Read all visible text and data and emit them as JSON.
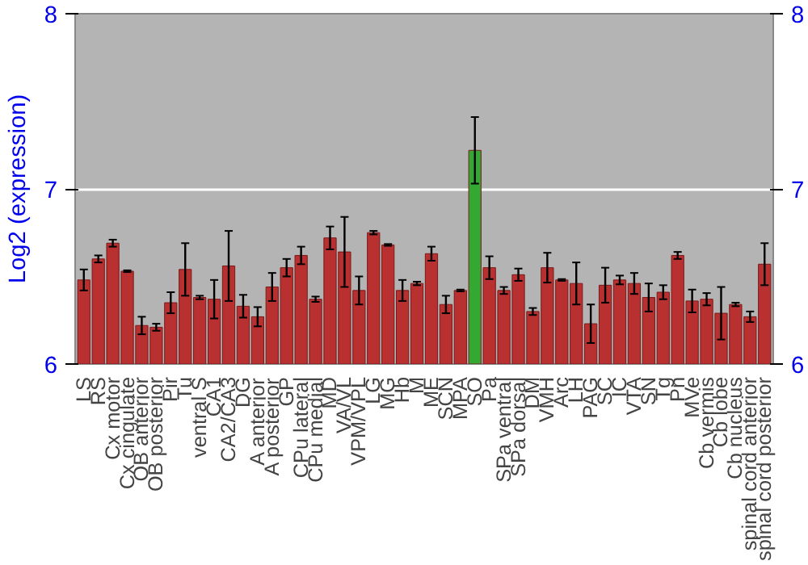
{
  "chart_data": {
    "type": "bar",
    "ylabel": "Log2 (expression)",
    "categories": [
      "LS",
      "RS",
      "Cx motor",
      "Cx cingulate",
      "OB anterior",
      "OB posterior",
      "Pir",
      "Tu",
      "ventral S",
      "CA1",
      "CA2/CA3",
      "DG",
      "A anterior",
      "A posterior",
      "GP",
      "CPu lateral",
      "CPu medial",
      "MD",
      "VA/VL",
      "VPM/VPL",
      "LG",
      "MG",
      "Hb",
      "M",
      "ME",
      "SCN",
      "MPA",
      "SO",
      "Pa",
      "SPa ventral",
      "SPa dorsal",
      "DM",
      "VMH",
      "Arc",
      "LH",
      "PAG",
      "SC",
      "IC",
      "VTA",
      "SN",
      "Tg",
      "Pn",
      "MVe",
      "Cb vermis",
      "Cb lobe",
      "Cb nucleus",
      "spinal cord anterior",
      "spinal cord posterior"
    ],
    "values": [
      6.48,
      6.6,
      6.69,
      6.53,
      6.22,
      6.21,
      6.35,
      6.54,
      6.38,
      6.37,
      6.56,
      6.33,
      6.27,
      6.44,
      6.55,
      6.62,
      6.37,
      6.72,
      6.64,
      6.42,
      6.75,
      6.68,
      6.42,
      6.46,
      6.63,
      6.34,
      6.42,
      7.22,
      6.55,
      6.42,
      6.51,
      6.3,
      6.55,
      6.48,
      6.46,
      6.23,
      6.45,
      6.48,
      6.46,
      6.38,
      6.41,
      6.62,
      6.36,
      6.37,
      6.29,
      6.34,
      6.27,
      6.57
    ],
    "errors": [
      0.06,
      0.02,
      0.02,
      0.005,
      0.05,
      0.02,
      0.06,
      0.15,
      0.01,
      0.11,
      0.2,
      0.065,
      0.055,
      0.08,
      0.05,
      0.05,
      0.015,
      0.065,
      0.2,
      0.08,
      0.01,
      0.005,
      0.06,
      0.01,
      0.04,
      0.05,
      0.005,
      0.19,
      0.065,
      0.02,
      0.035,
      0.02,
      0.085,
      0.005,
      0.12,
      0.11,
      0.1,
      0.025,
      0.06,
      0.08,
      0.04,
      0.02,
      0.065,
      0.035,
      0.15,
      0.01,
      0.03,
      0.12
    ],
    "colors": [
      "#b83030",
      "#b83030",
      "#b83030",
      "#b83030",
      "#b83030",
      "#b83030",
      "#b83030",
      "#b83030",
      "#b83030",
      "#b83030",
      "#b83030",
      "#b83030",
      "#b83030",
      "#b83030",
      "#b83030",
      "#b83030",
      "#b83030",
      "#b83030",
      "#b83030",
      "#b83030",
      "#b83030",
      "#b83030",
      "#b83030",
      "#b83030",
      "#b83030",
      "#b83030",
      "#b83030",
      "#33a833",
      "#b83030",
      "#b83030",
      "#b83030",
      "#b83030",
      "#b83030",
      "#b83030",
      "#b83030",
      "#b83030",
      "#b83030",
      "#b83030",
      "#b83030",
      "#b83030",
      "#b83030",
      "#b83030",
      "#b83030",
      "#b83030",
      "#b83030",
      "#b83030",
      "#b83030",
      "#b83030"
    ],
    "ylim": [
      6,
      8
    ],
    "yticks": [
      6,
      7,
      8
    ],
    "y2lim": [
      6,
      8
    ],
    "y2ticks": [
      6,
      7,
      8
    ],
    "grid": "y"
  }
}
